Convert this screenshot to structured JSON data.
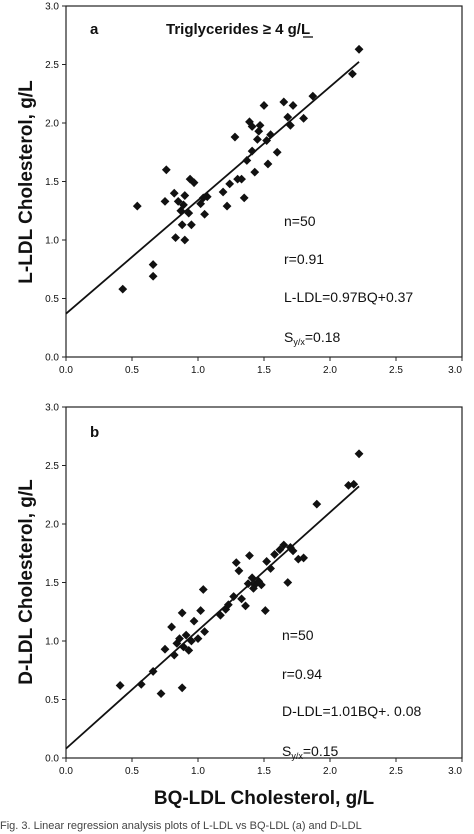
{
  "figure": {
    "x_axis_label": "BQ-LDL Cholesterol, g/L",
    "caption": "Fig. 3. Linear regression analysis plots of L-LDL vs BQ-LDL (a) and D-LDL"
  },
  "chart_data": [
    {
      "type": "scatter",
      "panel_label": "a",
      "title": "Triglycerides ≥ 4 g/L",
      "xlabel": "",
      "ylabel": "L-LDL Cholesterol, g/L",
      "xlim": [
        0,
        3
      ],
      "ylim": [
        0,
        3
      ],
      "x_ticks": [
        "0.0",
        "0.5",
        "1.0",
        "1.5",
        "2.0",
        "2.5",
        "3.0"
      ],
      "y_ticks": [
        "0.0",
        "0.5",
        "1.0",
        "1.5",
        "2.0",
        "2.5",
        "3.0"
      ],
      "grid": false,
      "regression": {
        "slope": 0.97,
        "intercept": 0.37,
        "x_range": [
          0,
          2.22
        ]
      },
      "stats": [
        "n=50",
        "r=0.91",
        "L-LDL=0.97BQ+0.37",
        "S_y/x=0.18"
      ],
      "points": [
        [
          0.43,
          0.58
        ],
        [
          0.54,
          1.29
        ],
        [
          0.66,
          0.79
        ],
        [
          0.66,
          0.69
        ],
        [
          0.75,
          1.33
        ],
        [
          0.76,
          1.6
        ],
        [
          0.82,
          1.4
        ],
        [
          0.83,
          1.02
        ],
        [
          0.85,
          1.33
        ],
        [
          0.87,
          1.25
        ],
        [
          0.88,
          1.13
        ],
        [
          0.89,
          1.3
        ],
        [
          0.9,
          1.38
        ],
        [
          0.9,
          1.0
        ],
        [
          0.93,
          1.23
        ],
        [
          0.94,
          1.52
        ],
        [
          0.95,
          1.13
        ],
        [
          0.97,
          1.49
        ],
        [
          1.02,
          1.31
        ],
        [
          1.04,
          1.36
        ],
        [
          1.05,
          1.22
        ],
        [
          1.07,
          1.37
        ],
        [
          1.19,
          1.41
        ],
        [
          1.22,
          1.29
        ],
        [
          1.24,
          1.48
        ],
        [
          1.28,
          1.88
        ],
        [
          1.3,
          1.52
        ],
        [
          1.33,
          1.52
        ],
        [
          1.35,
          1.36
        ],
        [
          1.37,
          1.68
        ],
        [
          1.39,
          2.01
        ],
        [
          1.41,
          1.97
        ],
        [
          1.41,
          1.76
        ],
        [
          1.43,
          1.58
        ],
        [
          1.45,
          1.86
        ],
        [
          1.46,
          1.93
        ],
        [
          1.47,
          1.98
        ],
        [
          1.5,
          2.15
        ],
        [
          1.52,
          1.85
        ],
        [
          1.53,
          1.65
        ],
        [
          1.55,
          1.9
        ],
        [
          1.6,
          1.75
        ],
        [
          1.65,
          2.18
        ],
        [
          1.68,
          2.05
        ],
        [
          1.7,
          1.98
        ],
        [
          1.72,
          2.15
        ],
        [
          1.8,
          2.04
        ],
        [
          1.87,
          2.23
        ],
        [
          2.17,
          2.42
        ],
        [
          2.22,
          2.63
        ]
      ]
    },
    {
      "type": "scatter",
      "panel_label": "b",
      "title": "",
      "xlabel": "BQ-LDL Cholesterol, g/L",
      "ylabel": "D-LDL Cholesterol, g/L",
      "xlim": [
        0,
        3
      ],
      "ylim": [
        0,
        3
      ],
      "x_ticks": [
        "0.0",
        "0.5",
        "1.0",
        "1.5",
        "2.0",
        "2.5",
        "3.0"
      ],
      "y_ticks": [
        "0.0",
        "0.5",
        "1.0",
        "1.5",
        "2.0",
        "2.5",
        "3.0"
      ],
      "grid": false,
      "regression": {
        "slope": 1.01,
        "intercept": 0.08,
        "x_range": [
          0,
          2.22
        ]
      },
      "stats": [
        "n=50",
        "r=0.94",
        "D-LDL=1.01BQ+. 0.08",
        "S_y/x=0.15"
      ],
      "points": [
        [
          0.41,
          0.62
        ],
        [
          0.57,
          0.63
        ],
        [
          0.66,
          0.74
        ],
        [
          0.72,
          0.55
        ],
        [
          0.75,
          0.93
        ],
        [
          0.8,
          1.12
        ],
        [
          0.82,
          0.88
        ],
        [
          0.84,
          0.98
        ],
        [
          0.86,
          1.02
        ],
        [
          0.88,
          0.6
        ],
        [
          0.88,
          1.24
        ],
        [
          0.89,
          0.95
        ],
        [
          0.91,
          1.05
        ],
        [
          0.93,
          0.92
        ],
        [
          0.95,
          1.0
        ],
        [
          0.97,
          1.17
        ],
        [
          1.0,
          1.02
        ],
        [
          1.02,
          1.26
        ],
        [
          1.04,
          1.44
        ],
        [
          1.05,
          1.08
        ],
        [
          1.17,
          1.22
        ],
        [
          1.21,
          1.27
        ],
        [
          1.23,
          1.31
        ],
        [
          1.27,
          1.38
        ],
        [
          1.29,
          1.67
        ],
        [
          1.31,
          1.6
        ],
        [
          1.33,
          1.36
        ],
        [
          1.36,
          1.3
        ],
        [
          1.38,
          1.49
        ],
        [
          1.39,
          1.73
        ],
        [
          1.41,
          1.54
        ],
        [
          1.42,
          1.45
        ],
        [
          1.43,
          1.48
        ],
        [
          1.46,
          1.51
        ],
        [
          1.48,
          1.48
        ],
        [
          1.51,
          1.26
        ],
        [
          1.52,
          1.68
        ],
        [
          1.55,
          1.62
        ],
        [
          1.58,
          1.74
        ],
        [
          1.62,
          1.78
        ],
        [
          1.65,
          1.82
        ],
        [
          1.68,
          1.5
        ],
        [
          1.7,
          1.8
        ],
        [
          1.72,
          1.77
        ],
        [
          1.76,
          1.7
        ],
        [
          1.8,
          1.71
        ],
        [
          1.9,
          2.17
        ],
        [
          2.14,
          2.33
        ],
        [
          2.18,
          2.34
        ],
        [
          2.22,
          2.6
        ]
      ]
    }
  ]
}
